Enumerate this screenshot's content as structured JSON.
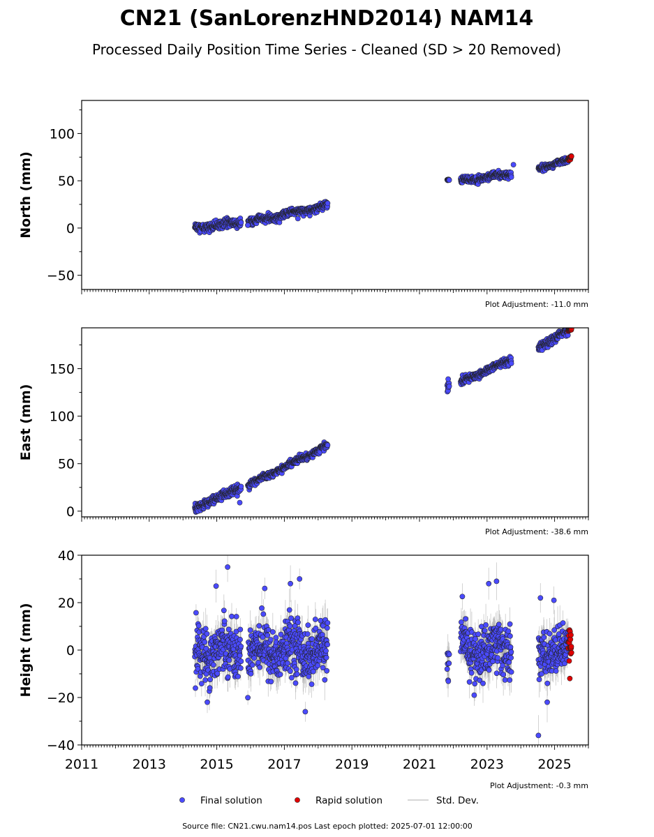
{
  "header": {
    "title": "CN21 (SanLorenzHND2014) NAM14",
    "subtitle": "Processed Daily Position Time Series - Cleaned (SD > 20 Removed)"
  },
  "footer": {
    "source": "Source file: CN21.cwu.nam14.pos  Last epoch plotted: 2025-07-01 12:00:00"
  },
  "legend": {
    "placement": "bottom-center",
    "entries": [
      {
        "label": "Final solution",
        "color": "#4a4aff"
      },
      {
        "label": "Rapid solution",
        "color": "#e00000"
      },
      {
        "label": "Std. Dev.",
        "color": "#c8c8c8"
      }
    ]
  },
  "x_tick_labels": [
    "2011",
    "2013",
    "2015",
    "2017",
    "2019",
    "2021",
    "2023",
    "2025"
  ],
  "chart_data": [
    {
      "type": "scatter",
      "ylabel": "North (mm)",
      "adjustment_label": "Plot Adjustment: -11.0 mm",
      "xlim": [
        2011.0,
        2026.0
      ],
      "ylim": [
        -65,
        135
      ],
      "yticks": [
        -50,
        0,
        50,
        100
      ],
      "grid": false,
      "segments": [
        {
          "x0": 2014.35,
          "x1": 2015.72,
          "y0": 0,
          "y1": 6,
          "scatter": 2.2,
          "amp": 1.5
        },
        {
          "x0": 2015.92,
          "x1": 2018.28,
          "y0": 6,
          "y1": 24,
          "scatter": 1.8,
          "amp": 1.5
        },
        {
          "x0": 2021.82,
          "x1": 2021.88,
          "y0": 51,
          "y1": 51,
          "scatter": 0.6,
          "amp": 0
        },
        {
          "x0": 2022.22,
          "x1": 2023.72,
          "y0": 50,
          "y1": 57,
          "scatter": 2.0,
          "amp": 1.5
        },
        {
          "x0": 2024.52,
          "x1": 2025.4,
          "y0": 64,
          "y1": 71,
          "scatter": 1.4,
          "amp": 1
        }
      ],
      "outliers": [
        {
          "x": 2015.92,
          "y": 3
        },
        {
          "x": 2017.4,
          "y": 10
        },
        {
          "x": 2023.78,
          "y": 67
        }
      ],
      "rapid": {
        "x0": 2025.4,
        "x1": 2025.5,
        "y0": 72,
        "y1": 75,
        "scatter": 1.0
      }
    },
    {
      "type": "scatter",
      "ylabel": "East (mm)",
      "adjustment_label": "Plot Adjustment: -38.6 mm",
      "xlim": [
        2011.0,
        2026.0
      ],
      "ylim": [
        -6,
        193
      ],
      "yticks": [
        0,
        50,
        100,
        150
      ],
      "grid": false,
      "segments": [
        {
          "x0": 2014.35,
          "x1": 2015.72,
          "y0": 3,
          "y1": 25,
          "scatter": 2.2,
          "amp": 0.8
        },
        {
          "x0": 2015.92,
          "x1": 2018.28,
          "y0": 27,
          "y1": 69,
          "scatter": 1.6,
          "amp": 0.8
        },
        {
          "x0": 2021.82,
          "x1": 2021.88,
          "y0": 126,
          "y1": 134,
          "scatter": 3.5,
          "amp": 0
        },
        {
          "x0": 2022.22,
          "x1": 2023.72,
          "y0": 136,
          "y1": 159,
          "scatter": 1.8,
          "amp": 1
        },
        {
          "x0": 2024.52,
          "x1": 2025.4,
          "y0": 172,
          "y1": 190,
          "scatter": 2.2,
          "amp": 1
        }
      ],
      "outliers": [
        {
          "x": 2015.68,
          "y": 9
        },
        {
          "x": 2021.85,
          "y": 139
        }
      ],
      "rapid": {
        "x0": 2025.4,
        "x1": 2025.5,
        "y0": 190,
        "y1": 192,
        "scatter": 0.8
      }
    },
    {
      "type": "scatter",
      "ylabel": "Height (mm)",
      "adjustment_label": "Plot Adjustment: -0.3 mm",
      "xlim": [
        2011.0,
        2026.0
      ],
      "ylim": [
        -40,
        40
      ],
      "yticks": [
        -40,
        -20,
        0,
        20,
        40
      ],
      "grid": false,
      "segments": [
        {
          "x0": 2014.35,
          "x1": 2015.72,
          "y0": 0,
          "y1": 0,
          "scatter": 5.5,
          "amp": 3
        },
        {
          "x0": 2015.92,
          "x1": 2018.28,
          "y0": 0,
          "y1": 0,
          "scatter": 5.5,
          "amp": 3
        },
        {
          "x0": 2021.82,
          "x1": 2021.88,
          "y0": -6,
          "y1": -6,
          "scatter": 4.5,
          "amp": 0
        },
        {
          "x0": 2022.22,
          "x1": 2023.72,
          "y0": 0,
          "y1": 0,
          "scatter": 5.5,
          "amp": 3
        },
        {
          "x0": 2024.52,
          "x1": 2025.4,
          "y0": -1,
          "y1": -1,
          "scatter": 4.5,
          "amp": 2
        }
      ],
      "outliers": [
        {
          "x": 2015.32,
          "y": 35
        },
        {
          "x": 2014.98,
          "y": 27
        },
        {
          "x": 2017.45,
          "y": 30
        },
        {
          "x": 2017.18,
          "y": 28
        },
        {
          "x": 2016.42,
          "y": 26
        },
        {
          "x": 2023.05,
          "y": 28
        },
        {
          "x": 2023.28,
          "y": 29
        },
        {
          "x": 2017.62,
          "y": -26
        },
        {
          "x": 2014.72,
          "y": -22
        },
        {
          "x": 2024.52,
          "y": -36
        },
        {
          "x": 2024.78,
          "y": -22
        },
        {
          "x": 2024.58,
          "y": 22
        },
        {
          "x": 2024.98,
          "y": 21
        },
        {
          "x": 2022.62,
          "y": -19
        }
      ],
      "rapid": {
        "x0": 2025.4,
        "x1": 2025.5,
        "y0": 1,
        "y1": 1,
        "scatter": 4.0,
        "extra": [
          {
            "x": 2025.45,
            "y": -12
          }
        ]
      }
    }
  ]
}
